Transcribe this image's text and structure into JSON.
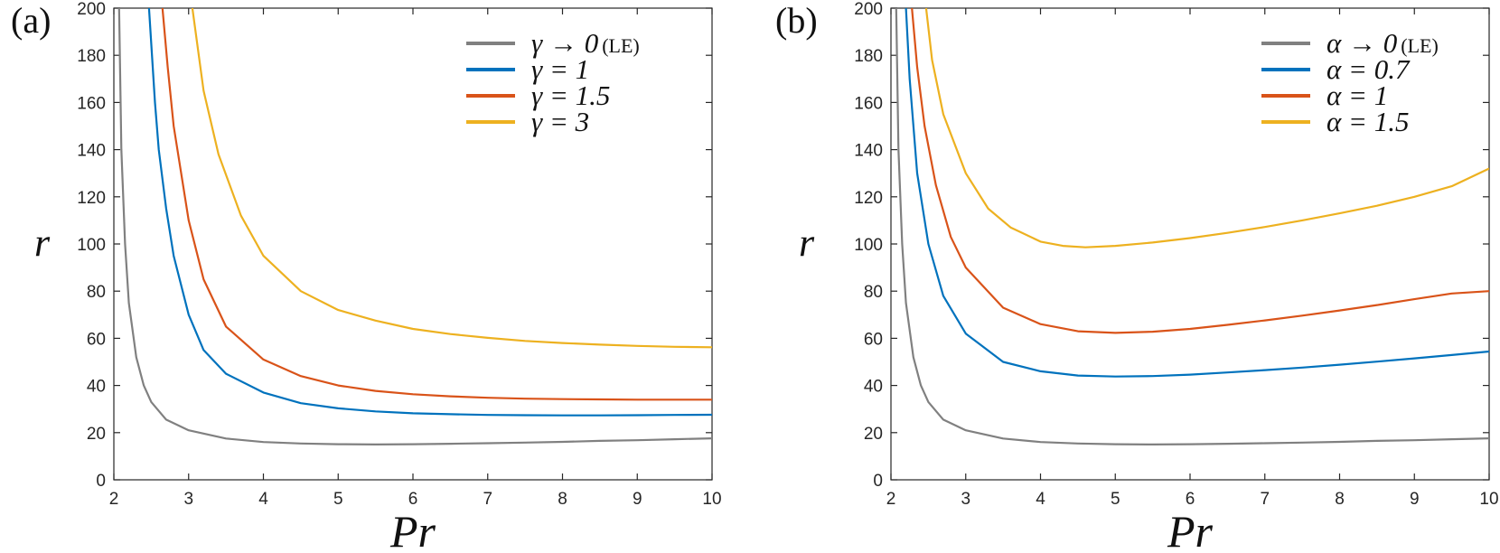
{
  "chart_data": [
    {
      "type": "line",
      "panel_label": "(a)",
      "xlabel": "Pr",
      "ylabel": "r",
      "xlim": [
        2,
        10
      ],
      "ylim": [
        0,
        200
      ],
      "xticks": [
        "2",
        "3",
        "4",
        "5",
        "6",
        "7",
        "8",
        "9",
        "10"
      ],
      "yticks": [
        "0",
        "20",
        "40",
        "60",
        "80",
        "100",
        "120",
        "140",
        "160",
        "180",
        "200"
      ],
      "grid": false,
      "legend_position": "top-right",
      "series": [
        {
          "name": "γ → 0",
          "name_suffix": "(LE)",
          "color": "#808080",
          "points": [
            [
              2.07,
              200
            ],
            [
              2.1,
              140
            ],
            [
              2.15,
              100
            ],
            [
              2.2,
              75
            ],
            [
              2.3,
              52
            ],
            [
              2.4,
              40
            ],
            [
              2.5,
              33
            ],
            [
              2.7,
              25.5
            ],
            [
              3,
              21
            ],
            [
              3.5,
              17.5
            ],
            [
              4,
              16
            ],
            [
              4.5,
              15.4
            ],
            [
              5,
              15.1
            ],
            [
              5.5,
              15
            ],
            [
              6,
              15.1
            ],
            [
              6.5,
              15.3
            ],
            [
              7,
              15.5
            ],
            [
              7.5,
              15.8
            ],
            [
              8,
              16.1
            ],
            [
              8.5,
              16.5
            ],
            [
              9,
              16.8
            ],
            [
              9.5,
              17.2
            ],
            [
              10,
              17.6
            ]
          ]
        },
        {
          "name": "γ = 1",
          "color": "#0072BD",
          "points": [
            [
              2.47,
              200
            ],
            [
              2.55,
              160
            ],
            [
              2.6,
              140
            ],
            [
              2.7,
              115
            ],
            [
              2.8,
              95
            ],
            [
              3,
              70
            ],
            [
              3.2,
              55
            ],
            [
              3.5,
              45
            ],
            [
              4,
              37
            ],
            [
              4.5,
              32.5
            ],
            [
              5,
              30.3
            ],
            [
              5.5,
              29
            ],
            [
              6,
              28.2
            ],
            [
              6.5,
              27.8
            ],
            [
              7,
              27.5
            ],
            [
              7.5,
              27.4
            ],
            [
              8,
              27.3
            ],
            [
              8.5,
              27.3
            ],
            [
              9,
              27.4
            ],
            [
              9.5,
              27.5
            ],
            [
              10,
              27.6
            ]
          ]
        },
        {
          "name": "γ = 1.5",
          "color": "#D95319",
          "points": [
            [
              2.65,
              200
            ],
            [
              2.72,
              175
            ],
            [
              2.8,
              150
            ],
            [
              3,
              110
            ],
            [
              3.2,
              85
            ],
            [
              3.5,
              65
            ],
            [
              4,
              51
            ],
            [
              4.5,
              44
            ],
            [
              5,
              40
            ],
            [
              5.5,
              37.7
            ],
            [
              6,
              36.3
            ],
            [
              6.5,
              35.4
            ],
            [
              7,
              34.8
            ],
            [
              7.5,
              34.4
            ],
            [
              8,
              34.2
            ],
            [
              8.5,
              34.1
            ],
            [
              9,
              34
            ],
            [
              9.5,
              34
            ],
            [
              10,
              34
            ]
          ]
        },
        {
          "name": "γ = 3",
          "color": "#EDB120",
          "points": [
            [
              3.05,
              200
            ],
            [
              3.2,
              165
            ],
            [
              3.4,
              138
            ],
            [
              3.7,
              112
            ],
            [
              4,
              95
            ],
            [
              4.5,
              80
            ],
            [
              5,
              72
            ],
            [
              5.5,
              67.5
            ],
            [
              6,
              64
            ],
            [
              6.5,
              61.8
            ],
            [
              7,
              60.2
            ],
            [
              7.5,
              58.9
            ],
            [
              8,
              58
            ],
            [
              8.5,
              57.3
            ],
            [
              9,
              56.8
            ],
            [
              9.5,
              56.4
            ],
            [
              10,
              56.2
            ]
          ]
        }
      ]
    },
    {
      "type": "line",
      "panel_label": "(b)",
      "xlabel": "Pr",
      "ylabel": "r",
      "xlim": [
        2,
        10
      ],
      "ylim": [
        0,
        200
      ],
      "xticks": [
        "2",
        "3",
        "4",
        "5",
        "6",
        "7",
        "8",
        "9",
        "10"
      ],
      "yticks": [
        "0",
        "20",
        "40",
        "60",
        "80",
        "100",
        "120",
        "140",
        "160",
        "180",
        "200"
      ],
      "grid": false,
      "legend_position": "top-right",
      "series": [
        {
          "name": "α → 0",
          "name_suffix": "(LE)",
          "color": "#808080",
          "points": [
            [
              2.07,
              200
            ],
            [
              2.1,
              140
            ],
            [
              2.15,
              100
            ],
            [
              2.2,
              75
            ],
            [
              2.3,
              52
            ],
            [
              2.4,
              40
            ],
            [
              2.5,
              33
            ],
            [
              2.7,
              25.5
            ],
            [
              3,
              21
            ],
            [
              3.5,
              17.5
            ],
            [
              4,
              16
            ],
            [
              4.5,
              15.4
            ],
            [
              5,
              15.1
            ],
            [
              5.5,
              15
            ],
            [
              6,
              15.1
            ],
            [
              6.5,
              15.3
            ],
            [
              7,
              15.5
            ],
            [
              7.5,
              15.8
            ],
            [
              8,
              16.1
            ],
            [
              8.5,
              16.5
            ],
            [
              9,
              16.8
            ],
            [
              9.5,
              17.2
            ],
            [
              10,
              17.6
            ]
          ]
        },
        {
          "name": "α = 0.7",
          "color": "#0072BD",
          "points": [
            [
              2.2,
              200
            ],
            [
              2.25,
              170
            ],
            [
              2.35,
              130
            ],
            [
              2.5,
              100
            ],
            [
              2.7,
              78
            ],
            [
              3,
              62
            ],
            [
              3.5,
              50
            ],
            [
              4,
              46
            ],
            [
              4.5,
              44.2
            ],
            [
              5,
              43.8
            ],
            [
              5.5,
              44
            ],
            [
              6,
              44.6
            ],
            [
              6.5,
              45.5
            ],
            [
              7,
              46.5
            ],
            [
              7.5,
              47.6
            ],
            [
              8,
              48.8
            ],
            [
              8.5,
              50.1
            ],
            [
              9,
              51.5
            ],
            [
              9.5,
              52.9
            ],
            [
              10,
              54.4
            ]
          ]
        },
        {
          "name": "α = 1",
          "color": "#D95319",
          "points": [
            [
              2.28,
              200
            ],
            [
              2.35,
              175
            ],
            [
              2.45,
              150
            ],
            [
              2.6,
              125
            ],
            [
              2.8,
              103
            ],
            [
              3,
              90
            ],
            [
              3.5,
              73
            ],
            [
              4,
              66
            ],
            [
              4.5,
              63
            ],
            [
              5,
              62.3
            ],
            [
              5.5,
              62.8
            ],
            [
              6,
              64
            ],
            [
              6.5,
              65.7
            ],
            [
              7,
              67.6
            ],
            [
              7.5,
              69.6
            ],
            [
              8,
              71.8
            ],
            [
              8.5,
              74.1
            ],
            [
              9,
              76.6
            ],
            [
              9.5,
              79
            ],
            [
              10,
              80
            ]
          ]
        },
        {
          "name": "α = 1.5",
          "color": "#EDB120",
          "points": [
            [
              2.47,
              200
            ],
            [
              2.55,
              178
            ],
            [
              2.7,
              155
            ],
            [
              3,
              130
            ],
            [
              3.3,
              115
            ],
            [
              3.6,
              107
            ],
            [
              4,
              101
            ],
            [
              4.3,
              99.2
            ],
            [
              4.6,
              98.6
            ],
            [
              5,
              99.2
            ],
            [
              5.5,
              100.6
            ],
            [
              6,
              102.5
            ],
            [
              6.5,
              104.7
            ],
            [
              7,
              107.2
            ],
            [
              7.5,
              110
            ],
            [
              8,
              113
            ],
            [
              8.5,
              116.2
            ],
            [
              9,
              120
            ],
            [
              9.5,
              124.5
            ],
            [
              10,
              132
            ]
          ]
        }
      ]
    }
  ]
}
